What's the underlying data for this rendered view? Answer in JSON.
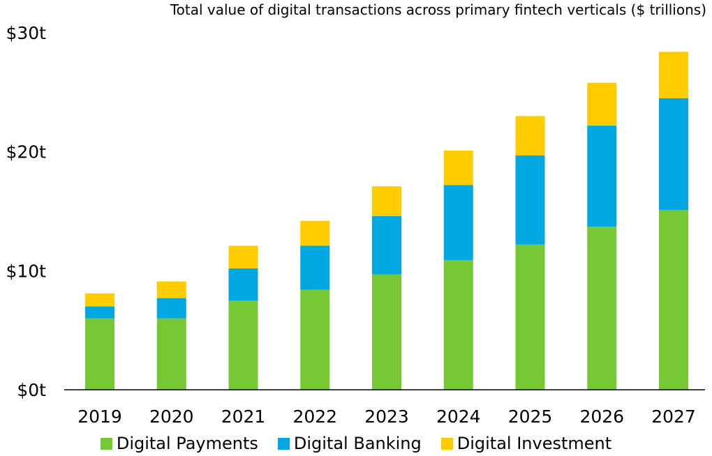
{
  "chart_data": {
    "type": "bar",
    "stacked": true,
    "title": "Total value of digital transactions across primary fintech verticals ($ trillions)",
    "xlabel": "",
    "ylabel": "",
    "categories": [
      "2019",
      "2020",
      "2021",
      "2022",
      "2023",
      "2024",
      "2025",
      "2026",
      "2027"
    ],
    "series": [
      {
        "name": "Digital Payments",
        "color": "#76c835",
        "values": [
          6.0,
          6.0,
          7.5,
          8.4,
          9.7,
          10.9,
          12.2,
          13.7,
          15.1
        ]
      },
      {
        "name": "Digital Banking",
        "color": "#00a7e1",
        "values": [
          1.0,
          1.7,
          2.7,
          3.7,
          4.9,
          6.3,
          7.5,
          8.5,
          9.4
        ]
      },
      {
        "name": "Digital Investment",
        "color": "#ffcc00",
        "values": [
          1.1,
          1.4,
          1.9,
          2.1,
          2.5,
          2.9,
          3.3,
          3.6,
          3.9
        ]
      }
    ],
    "ylim": [
      0,
      30
    ],
    "yticks": [
      0,
      10,
      20,
      30
    ],
    "ytick_labels": [
      "$0t",
      "$10t",
      "$20t",
      "$30t"
    ],
    "grid": false,
    "legend_position": "bottom"
  }
}
